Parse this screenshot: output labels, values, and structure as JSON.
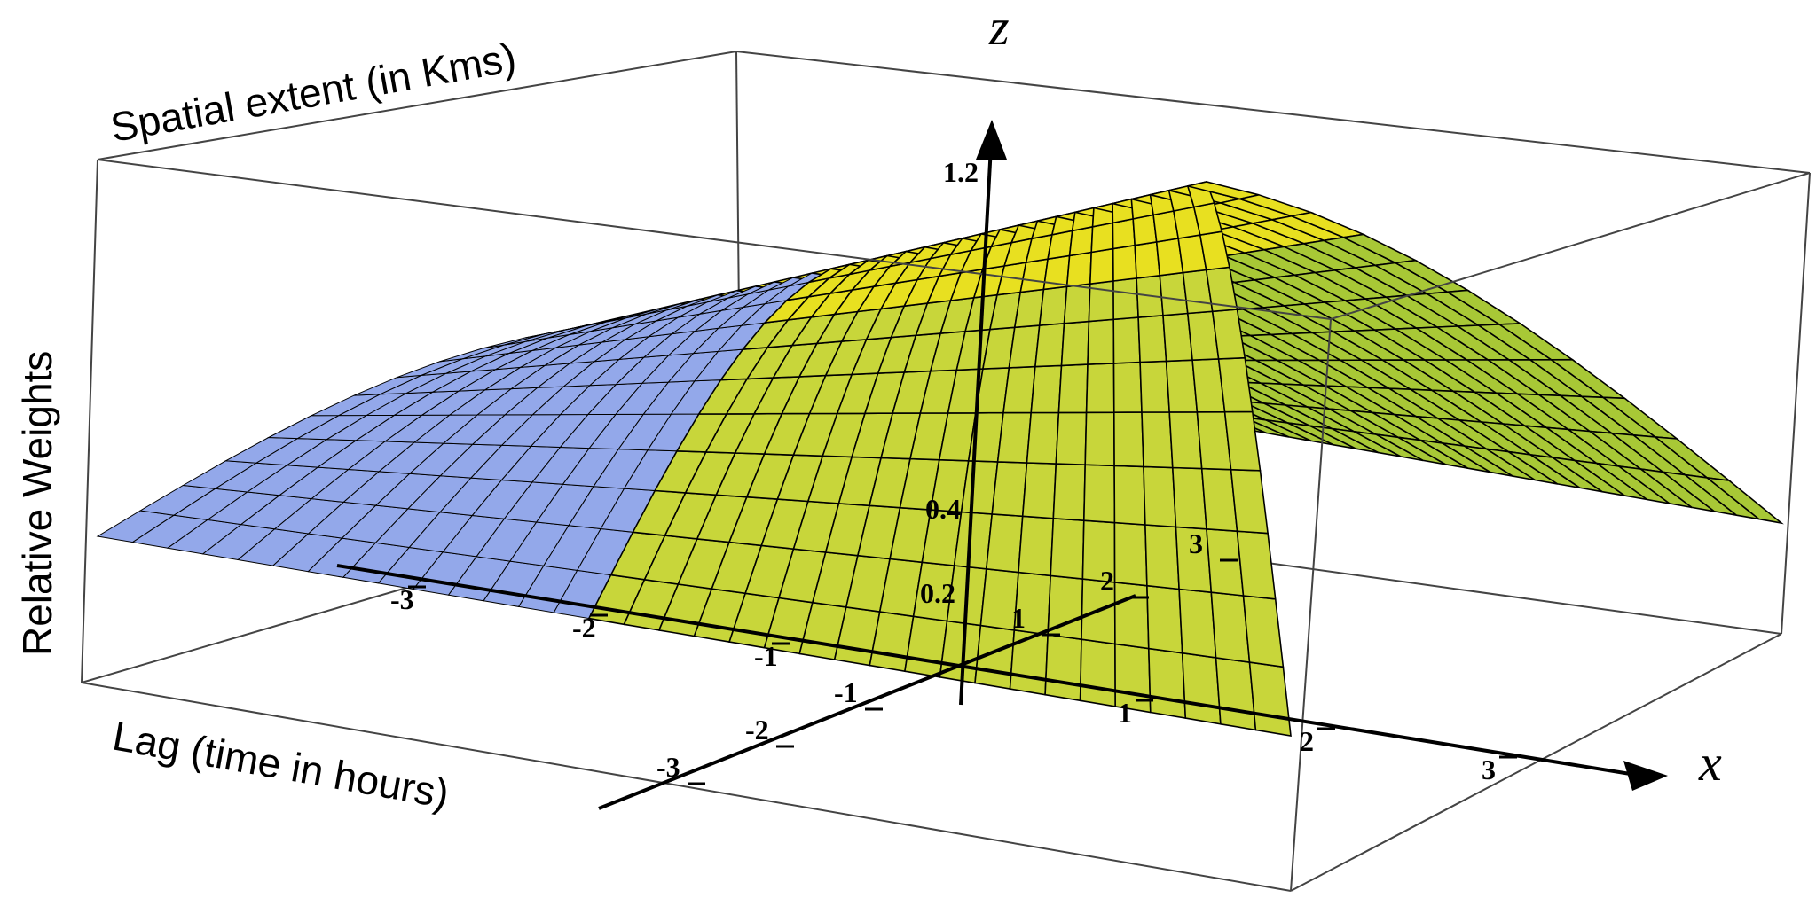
{
  "chart_data": {
    "type": "surface",
    "labels": {
      "spatial": "Spatial extent (in Kms)",
      "weights": "Relative Weights",
      "lag": "Lag (time in hours)"
    },
    "axis_letters": {
      "z": "z",
      "x": "x"
    },
    "lag_axis_ticks": [
      "-3",
      "-2",
      "-1",
      "1",
      "2",
      "3"
    ],
    "lag_axis_tick_values": [
      -3,
      -2,
      -1,
      1,
      2,
      3
    ],
    "x_axis_ticks": [
      "-3",
      "-2",
      "-1",
      "1",
      "2",
      "3"
    ],
    "x_axis_tick_values": [
      -3,
      -2,
      -1,
      1,
      2,
      3
    ],
    "z_axis_ticks": [
      "0.2",
      "0.4",
      "1.2"
    ],
    "z_axis_tick_values": [
      0.2,
      0.4,
      1.2
    ],
    "surface": {
      "function": "gaussian along x, constant along lag",
      "x_range": [
        -3,
        3
      ],
      "lag_range": [
        -3,
        3
      ],
      "peak": 1.0
    },
    "colors": {
      "surface_back": "#93a8ea",
      "surface_front": "#a8c836",
      "surface_ridge": "#e8e020",
      "mesh": "#000000",
      "box": "#444444"
    }
  }
}
